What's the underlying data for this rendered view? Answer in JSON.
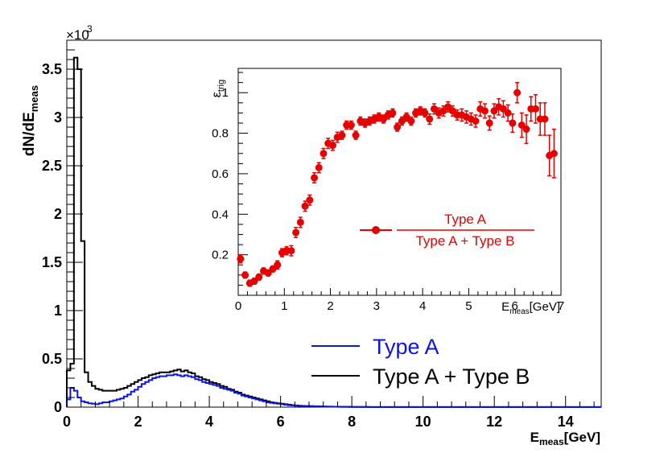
{
  "chart_data": [
    {
      "type": "line",
      "subtype": "step-histogram",
      "title": "",
      "xlabel_main": "E",
      "xlabel_sub": "meas",
      "xlabel_unit": "[GeV]",
      "ylabel_main": "dN/dE",
      "ylabel_sub": "meas",
      "y_exponent_label": "×10",
      "y_exponent_power": "3",
      "xlim": [
        0,
        15
      ],
      "ylim": [
        0,
        3.8
      ],
      "x_ticks": [
        0,
        2,
        4,
        6,
        8,
        10,
        12,
        14
      ],
      "x_tick_labels": [
        "0",
        "2",
        "4",
        "6",
        "8",
        "10",
        "12",
        "14"
      ],
      "y_ticks": [
        0,
        0.5,
        1,
        1.5,
        2,
        2.5,
        3,
        3.5
      ],
      "y_tick_labels": [
        "0",
        "0.5",
        "1",
        "1.5",
        "2",
        "2.5",
        "3",
        "3.5"
      ],
      "bin_width": 0.1,
      "bin_start": 0,
      "legend": {
        "placement": "bottom-right",
        "entries": [
          {
            "label": "Type A",
            "color": "#0a14e6"
          },
          {
            "label": "Type A + Type B",
            "color": "#000000"
          }
        ]
      },
      "series": [
        {
          "name": "Type A + Type B",
          "color": "#000000",
          "values": [
            0.38,
            0.45,
            3.62,
            3.5,
            1.72,
            0.36,
            0.26,
            0.22,
            0.19,
            0.18,
            0.17,
            0.17,
            0.17,
            0.17,
            0.18,
            0.19,
            0.2,
            0.22,
            0.24,
            0.26,
            0.28,
            0.3,
            0.31,
            0.33,
            0.34,
            0.35,
            0.36,
            0.36,
            0.36,
            0.37,
            0.38,
            0.39,
            0.37,
            0.38,
            0.36,
            0.35,
            0.32,
            0.31,
            0.29,
            0.28,
            0.26,
            0.25,
            0.24,
            0.22,
            0.21,
            0.19,
            0.18,
            0.16,
            0.15,
            0.13,
            0.12,
            0.11,
            0.1,
            0.09,
            0.08,
            0.07,
            0.06,
            0.05,
            0.045,
            0.04,
            0.035,
            0.03,
            0.025,
            0.02,
            0.018,
            0.015,
            0.013,
            0.011,
            0.01,
            0.009,
            0.008,
            0.007,
            0.006,
            0.005,
            0.005,
            0.004,
            0.004,
            0.003,
            0.003,
            0.003,
            0.002,
            0.002,
            0.002,
            0.002,
            0.002,
            0.001,
            0.001,
            0.001,
            0.001,
            0.001,
            0.001,
            0.001,
            0.001,
            0.001,
            0.001,
            0.001,
            0.001,
            0.001,
            0.001,
            0.001,
            0.001,
            0.001,
            0.001,
            0.001,
            0.001,
            0.001,
            0.001,
            0.001,
            0.001,
            0.001,
            0.001,
            0.001,
            0.001,
            0.001,
            0.001,
            0.001,
            0.001,
            0.001,
            0.001,
            0.001,
            0.001,
            0.001,
            0.001,
            0.001,
            0.001,
            0.001,
            0.001,
            0.001,
            0.001,
            0.001,
            0.001,
            0.001,
            0.001,
            0.001,
            0.001,
            0.001,
            0.001,
            0.001,
            0.001,
            0.001,
            0.001,
            0.001,
            0.001,
            0.001,
            0.001,
            0.001,
            0.001,
            0.001,
            0.001,
            0.001
          ]
        },
        {
          "name": "Type A",
          "color": "#0a14e6",
          "values": [
            0.08,
            0.2,
            0.17,
            0.1,
            0.06,
            0.05,
            0.04,
            0.035,
            0.03,
            0.04,
            0.05,
            0.05,
            0.06,
            0.07,
            0.08,
            0.09,
            0.11,
            0.13,
            0.16,
            0.18,
            0.21,
            0.24,
            0.26,
            0.28,
            0.3,
            0.31,
            0.32,
            0.32,
            0.33,
            0.33,
            0.34,
            0.33,
            0.32,
            0.33,
            0.32,
            0.31,
            0.29,
            0.28,
            0.26,
            0.25,
            0.24,
            0.23,
            0.22,
            0.2,
            0.19,
            0.18,
            0.17,
            0.15,
            0.14,
            0.12,
            0.11,
            0.1,
            0.09,
            0.08,
            0.07,
            0.06,
            0.05,
            0.045,
            0.04,
            0.035,
            0.03,
            0.025,
            0.02,
            0.018,
            0.015,
            0.013,
            0.011,
            0.01,
            0.009,
            0.008,
            0.007,
            0.006,
            0.005,
            0.005,
            0.004,
            0.004,
            0.003,
            0.003,
            0.003,
            0.002,
            0.002,
            0.002,
            0.002,
            0.002,
            0.001,
            0.001,
            0.001,
            0.001,
            0.001,
            0.001,
            0.001,
            0.001,
            0.001,
            0.001,
            0.001,
            0.001,
            0.001,
            0.001,
            0.001,
            0.001,
            0.001,
            0.001,
            0.001,
            0.001,
            0.001,
            0.001,
            0.001,
            0.001,
            0.001,
            0.001,
            0.001,
            0.001,
            0.001,
            0.001,
            0.001,
            0.001,
            0.001,
            0.001,
            0.001,
            0.001,
            0.001,
            0.001,
            0.001,
            0.001,
            0.001,
            0.001,
            0.001,
            0.001,
            0.001,
            0.001,
            0.001,
            0.001,
            0.001,
            0.001,
            0.001,
            0.001,
            0.001,
            0.001,
            0.001,
            0.001,
            0.001,
            0.001,
            0.001,
            0.001,
            0.001,
            0.001,
            0.001,
            0.001,
            0.001,
            0.001
          ]
        }
      ]
    },
    {
      "type": "scatter",
      "subtype": "inset-with-error-bars",
      "title": "",
      "xlabel_main": "E",
      "xlabel_sub": "meas",
      "xlabel_unit": "[GeV]",
      "ylabel_main": "ε",
      "ylabel_sub": "trig",
      "xlim": [
        0,
        7
      ],
      "ylim": [
        0,
        1.12
      ],
      "x_ticks": [
        0,
        1,
        2,
        3,
        4,
        5,
        6,
        7
      ],
      "x_tick_labels": [
        "0",
        "1",
        "2",
        "3",
        "4",
        "5",
        "6",
        "7"
      ],
      "y_ticks": [
        0.2,
        0.4,
        0.6,
        0.8,
        1
      ],
      "y_tick_labels": [
        "0.2",
        "0.4",
        "0.6",
        "0.8",
        "1"
      ],
      "legend": {
        "placement": "center-right",
        "numerator": "Type A",
        "denominator": "Type A + Type B",
        "color": "#e60000"
      },
      "series": [
        {
          "name": "Type A / (Type A + Type B)",
          "color": "#e60000",
          "x": [
            0.05,
            0.15,
            0.25,
            0.35,
            0.45,
            0.55,
            0.65,
            0.75,
            0.85,
            0.95,
            1.05,
            1.15,
            1.25,
            1.35,
            1.45,
            1.55,
            1.65,
            1.75,
            1.85,
            1.95,
            2.05,
            2.15,
            2.25,
            2.35,
            2.45,
            2.55,
            2.65,
            2.75,
            2.85,
            2.95,
            3.05,
            3.15,
            3.25,
            3.35,
            3.45,
            3.55,
            3.65,
            3.75,
            3.85,
            3.95,
            4.05,
            4.15,
            4.25,
            4.35,
            4.45,
            4.55,
            4.65,
            4.75,
            4.85,
            4.95,
            5.05,
            5.15,
            5.25,
            5.35,
            5.45,
            5.55,
            5.65,
            5.75,
            5.85,
            5.95,
            6.05,
            6.15,
            6.25,
            6.35,
            6.45,
            6.55,
            6.65,
            6.75,
            6.85
          ],
          "y": [
            0.18,
            0.1,
            0.06,
            0.07,
            0.09,
            0.12,
            0.11,
            0.13,
            0.15,
            0.21,
            0.22,
            0.22,
            0.31,
            0.36,
            0.44,
            0.47,
            0.58,
            0.63,
            0.7,
            0.75,
            0.74,
            0.78,
            0.79,
            0.84,
            0.84,
            0.79,
            0.86,
            0.85,
            0.86,
            0.87,
            0.88,
            0.87,
            0.89,
            0.9,
            0.83,
            0.86,
            0.88,
            0.86,
            0.9,
            0.91,
            0.9,
            0.87,
            0.92,
            0.9,
            0.91,
            0.93,
            0.91,
            0.89,
            0.89,
            0.88,
            0.87,
            0.86,
            0.92,
            0.91,
            0.85,
            0.91,
            0.93,
            0.92,
            0.9,
            0.85,
            1.0,
            0.84,
            0.82,
            0.92,
            0.92,
            0.87,
            0.87,
            0.69,
            0.7
          ],
          "err": [
            0.02,
            0.015,
            0.015,
            0.015,
            0.015,
            0.015,
            0.015,
            0.015,
            0.02,
            0.02,
            0.02,
            0.025,
            0.025,
            0.025,
            0.025,
            0.025,
            0.025,
            0.025,
            0.025,
            0.025,
            0.025,
            0.025,
            0.02,
            0.02,
            0.02,
            0.02,
            0.02,
            0.02,
            0.02,
            0.02,
            0.02,
            0.02,
            0.02,
            0.02,
            0.02,
            0.02,
            0.02,
            0.02,
            0.02,
            0.02,
            0.02,
            0.025,
            0.025,
            0.025,
            0.025,
            0.025,
            0.025,
            0.025,
            0.03,
            0.03,
            0.03,
            0.03,
            0.035,
            0.035,
            0.035,
            0.035,
            0.04,
            0.04,
            0.04,
            0.045,
            0.05,
            0.06,
            0.07,
            0.06,
            0.07,
            0.08,
            0.08,
            0.1,
            0.12
          ]
        }
      ]
    }
  ]
}
